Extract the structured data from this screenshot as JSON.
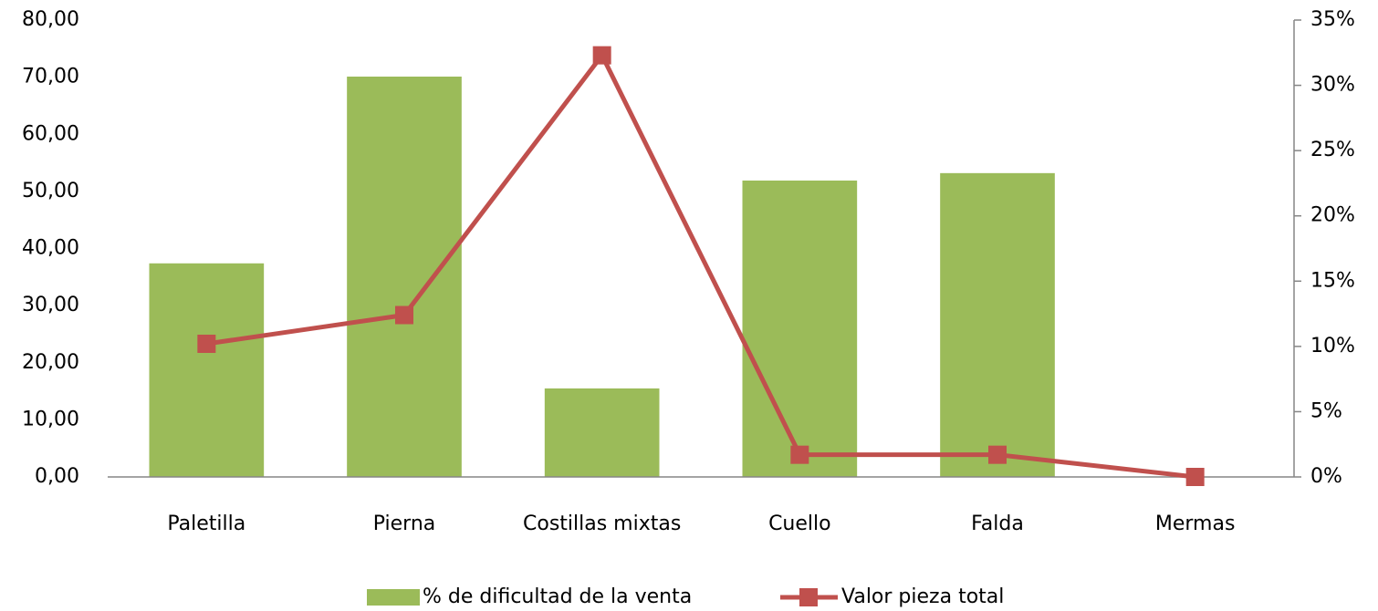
{
  "chart_data": {
    "type": "bar-line",
    "categories": [
      "Paletilla",
      "Pierna",
      "Costillas mixtas",
      "Cuello",
      "Falda",
      "Mermas"
    ],
    "series": [
      {
        "name": "% de dificultad de la venta",
        "type": "bar",
        "color": "#9bbb59",
        "values": [
          37.4,
          70.1,
          15.5,
          51.9,
          53.2,
          0
        ]
      },
      {
        "name": "Valor pieza total",
        "type": "line",
        "axis": "y2",
        "color": "#c0504d",
        "values": [
          10.2,
          12.4,
          32.3,
          1.7,
          1.7,
          0
        ]
      }
    ],
    "ylim": [
      0,
      80
    ],
    "yticks": [
      {
        "value": 0,
        "label": "0,00"
      },
      {
        "value": 10,
        "label": "10,00"
      },
      {
        "value": 20,
        "label": "20,00"
      },
      {
        "value": 30,
        "label": "30,00"
      },
      {
        "value": 40,
        "label": "40,00"
      },
      {
        "value": 50,
        "label": "50,00"
      },
      {
        "value": 60,
        "label": "60,00"
      },
      {
        "value": 70,
        "label": "70,00"
      },
      {
        "value": 80,
        "label": "80,00"
      }
    ],
    "y2lim": [
      0,
      35
    ],
    "y2ticks": [
      {
        "value": 0,
        "label": "0%"
      },
      {
        "value": 5,
        "label": "5%"
      },
      {
        "value": 10,
        "label": "10%"
      },
      {
        "value": 15,
        "label": "15%"
      },
      {
        "value": 20,
        "label": "20%"
      },
      {
        "value": 25,
        "label": "25%"
      },
      {
        "value": 30,
        "label": "30%"
      },
      {
        "value": 35,
        "label": "35%"
      }
    ],
    "legend": "bottom"
  }
}
